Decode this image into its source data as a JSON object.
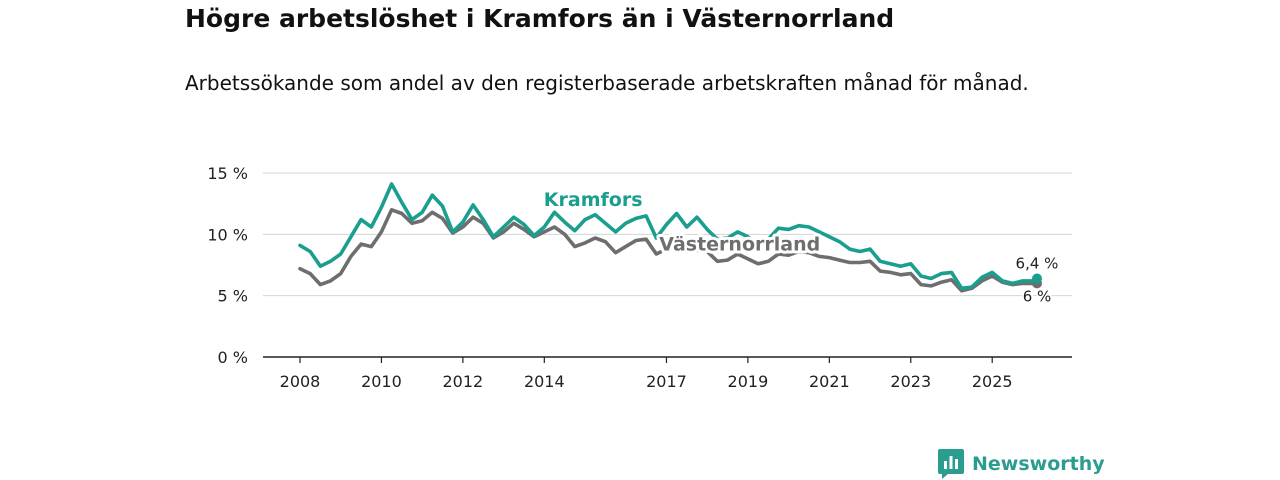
{
  "header": {
    "title": "Högre arbetslöshet i Kramfors än i Västernorrland",
    "subtitle": "Arbetssökande som andel av den registerbaserade arbetskraften månad för månad."
  },
  "chart_data": {
    "type": "line",
    "ylim": [
      0,
      15
    ],
    "xlim": [
      2008,
      2026.5
    ],
    "y_ticks": [
      0,
      5,
      10,
      15
    ],
    "y_tick_labels": [
      "0 %",
      "5 %",
      "10 %",
      "15 %"
    ],
    "x_ticks": [
      2008,
      2010,
      2012,
      2014,
      2017,
      2019,
      2021,
      2023,
      2025
    ],
    "x_tick_labels": [
      "2008",
      "2010",
      "2012",
      "2014",
      "2017",
      "2019",
      "2021",
      "2023",
      "2025"
    ],
    "grid": true,
    "series": [
      {
        "name": "Kramfors",
        "color": "#1a9e8f",
        "last_value_label": "6,4 %",
        "points": [
          [
            2008.0,
            9.1
          ],
          [
            2008.25,
            8.6
          ],
          [
            2008.5,
            7.4
          ],
          [
            2008.75,
            7.8
          ],
          [
            2009.0,
            8.4
          ],
          [
            2009.25,
            9.8
          ],
          [
            2009.5,
            11.2
          ],
          [
            2009.75,
            10.6
          ],
          [
            2010.0,
            12.2
          ],
          [
            2010.25,
            14.1
          ],
          [
            2010.5,
            12.6
          ],
          [
            2010.75,
            11.2
          ],
          [
            2011.0,
            11.8
          ],
          [
            2011.25,
            13.2
          ],
          [
            2011.5,
            12.3
          ],
          [
            2011.75,
            10.2
          ],
          [
            2012.0,
            11.0
          ],
          [
            2012.25,
            12.4
          ],
          [
            2012.5,
            11.2
          ],
          [
            2012.75,
            9.8
          ],
          [
            2013.0,
            10.6
          ],
          [
            2013.25,
            11.4
          ],
          [
            2013.5,
            10.8
          ],
          [
            2013.75,
            9.9
          ],
          [
            2014.0,
            10.6
          ],
          [
            2014.25,
            11.8
          ],
          [
            2014.5,
            11.0
          ],
          [
            2014.75,
            10.3
          ],
          [
            2015.0,
            11.2
          ],
          [
            2015.25,
            11.6
          ],
          [
            2015.5,
            10.9
          ],
          [
            2015.75,
            10.2
          ],
          [
            2016.0,
            10.9
          ],
          [
            2016.25,
            11.3
          ],
          [
            2016.5,
            11.5
          ],
          [
            2016.75,
            9.7
          ],
          [
            2017.0,
            10.8
          ],
          [
            2017.25,
            11.7
          ],
          [
            2017.5,
            10.6
          ],
          [
            2017.75,
            11.4
          ],
          [
            2018.0,
            10.4
          ],
          [
            2018.25,
            9.6
          ],
          [
            2018.5,
            9.7
          ],
          [
            2018.75,
            10.2
          ],
          [
            2019.0,
            9.8
          ],
          [
            2019.25,
            9.2
          ],
          [
            2019.5,
            9.6
          ],
          [
            2019.75,
            10.5
          ],
          [
            2020.0,
            10.4
          ],
          [
            2020.25,
            10.7
          ],
          [
            2020.5,
            10.6
          ],
          [
            2020.75,
            10.2
          ],
          [
            2021.0,
            9.8
          ],
          [
            2021.25,
            9.4
          ],
          [
            2021.5,
            8.8
          ],
          [
            2021.75,
            8.6
          ],
          [
            2022.0,
            8.8
          ],
          [
            2022.25,
            7.8
          ],
          [
            2022.5,
            7.6
          ],
          [
            2022.75,
            7.4
          ],
          [
            2023.0,
            7.6
          ],
          [
            2023.25,
            6.6
          ],
          [
            2023.5,
            6.4
          ],
          [
            2023.75,
            6.8
          ],
          [
            2024.0,
            6.9
          ],
          [
            2024.25,
            5.6
          ],
          [
            2024.5,
            5.7
          ],
          [
            2024.75,
            6.5
          ],
          [
            2025.0,
            6.9
          ],
          [
            2025.25,
            6.2
          ],
          [
            2025.5,
            6.0
          ],
          [
            2025.75,
            6.2
          ],
          [
            2026.0,
            6.2
          ],
          [
            2026.1,
            6.4
          ]
        ]
      },
      {
        "name": "Västernorrland",
        "color": "#6e6e6e",
        "last_value_label": "6 %",
        "points": [
          [
            2008.0,
            7.2
          ],
          [
            2008.25,
            6.8
          ],
          [
            2008.5,
            5.9
          ],
          [
            2008.75,
            6.2
          ],
          [
            2009.0,
            6.8
          ],
          [
            2009.25,
            8.2
          ],
          [
            2009.5,
            9.2
          ],
          [
            2009.75,
            9.0
          ],
          [
            2010.0,
            10.2
          ],
          [
            2010.25,
            12.0
          ],
          [
            2010.5,
            11.7
          ],
          [
            2010.75,
            10.9
          ],
          [
            2011.0,
            11.1
          ],
          [
            2011.25,
            11.8
          ],
          [
            2011.5,
            11.3
          ],
          [
            2011.75,
            10.1
          ],
          [
            2012.0,
            10.6
          ],
          [
            2012.25,
            11.4
          ],
          [
            2012.5,
            10.9
          ],
          [
            2012.75,
            9.7
          ],
          [
            2013.0,
            10.2
          ],
          [
            2013.25,
            10.9
          ],
          [
            2013.5,
            10.4
          ],
          [
            2013.75,
            9.8
          ],
          [
            2014.0,
            10.2
          ],
          [
            2014.25,
            10.6
          ],
          [
            2014.5,
            10.0
          ],
          [
            2014.75,
            9.0
          ],
          [
            2015.0,
            9.3
          ],
          [
            2015.25,
            9.7
          ],
          [
            2015.5,
            9.4
          ],
          [
            2015.75,
            8.5
          ],
          [
            2016.0,
            9.0
          ],
          [
            2016.25,
            9.5
          ],
          [
            2016.5,
            9.6
          ],
          [
            2016.75,
            8.4
          ],
          [
            2017.0,
            8.8
          ],
          [
            2017.25,
            9.3
          ],
          [
            2017.5,
            8.6
          ],
          [
            2017.75,
            8.7
          ],
          [
            2018.0,
            8.6
          ],
          [
            2018.25,
            7.8
          ],
          [
            2018.5,
            7.9
          ],
          [
            2018.75,
            8.4
          ],
          [
            2019.0,
            8.0
          ],
          [
            2019.25,
            7.6
          ],
          [
            2019.5,
            7.8
          ],
          [
            2019.75,
            8.4
          ],
          [
            2020.0,
            8.3
          ],
          [
            2020.25,
            8.6
          ],
          [
            2020.5,
            8.5
          ],
          [
            2020.75,
            8.2
          ],
          [
            2021.0,
            8.1
          ],
          [
            2021.25,
            7.9
          ],
          [
            2021.5,
            7.7
          ],
          [
            2021.75,
            7.7
          ],
          [
            2022.0,
            7.8
          ],
          [
            2022.25,
            7.0
          ],
          [
            2022.5,
            6.9
          ],
          [
            2022.75,
            6.7
          ],
          [
            2023.0,
            6.8
          ],
          [
            2023.25,
            5.9
          ],
          [
            2023.5,
            5.8
          ],
          [
            2023.75,
            6.1
          ],
          [
            2024.0,
            6.3
          ],
          [
            2024.25,
            5.4
          ],
          [
            2024.5,
            5.6
          ],
          [
            2024.75,
            6.2
          ],
          [
            2025.0,
            6.6
          ],
          [
            2025.25,
            6.1
          ],
          [
            2025.5,
            5.9
          ],
          [
            2025.75,
            6.0
          ],
          [
            2026.0,
            6.0
          ],
          [
            2026.1,
            6.0
          ]
        ]
      }
    ],
    "annotations": [
      {
        "series": "Kramfors",
        "text": "Kramfors",
        "x": 2015.2,
        "y": 12.3
      },
      {
        "series": "Västernorrland",
        "text": "Västernorrland",
        "x": 2018.8,
        "y": 8.7
      }
    ]
  },
  "brand": {
    "name": "Newsworthy",
    "color": "#2b9d8f"
  }
}
